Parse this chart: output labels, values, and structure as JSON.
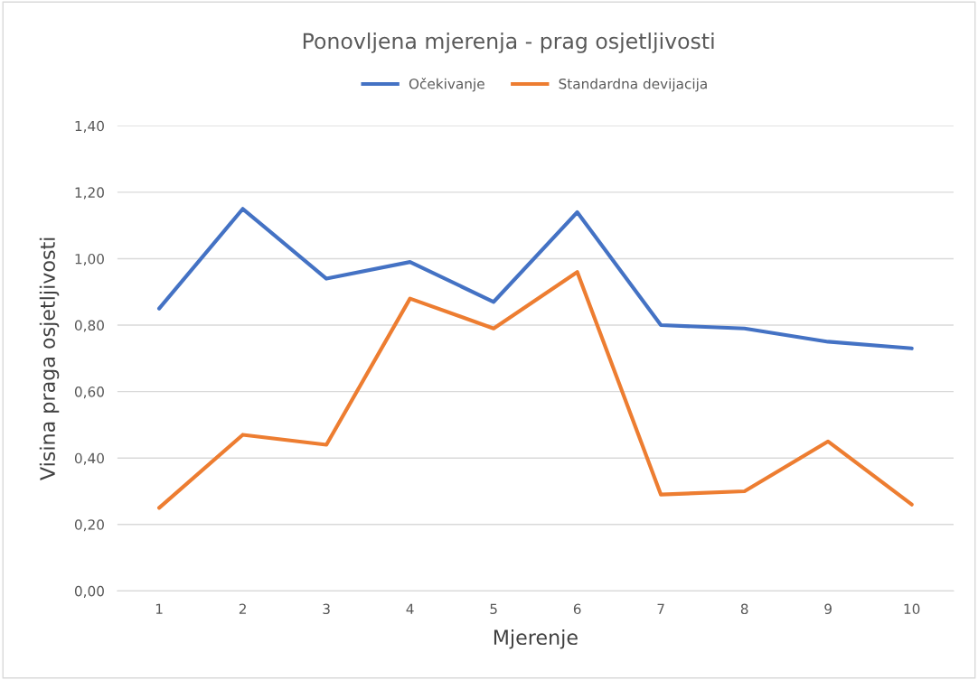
{
  "chart_data": {
    "type": "line",
    "title": "Ponovljena mjerenja - prag osjetljivosti",
    "xlabel": "Mjerenje",
    "ylabel": "Visina praga osjetljivosti",
    "categories": [
      "1",
      "2",
      "3",
      "4",
      "5",
      "6",
      "7",
      "8",
      "9",
      "10"
    ],
    "series": [
      {
        "name": "Očekivanje",
        "color": "#4472c4",
        "values": [
          0.85,
          1.15,
          0.94,
          0.99,
          0.87,
          1.14,
          0.8,
          0.79,
          0.75,
          0.73
        ]
      },
      {
        "name": "Standardna devijacija",
        "color": "#ed7d31",
        "values": [
          0.25,
          0.47,
          0.44,
          0.88,
          0.79,
          0.96,
          0.29,
          0.3,
          0.45,
          0.26
        ]
      }
    ],
    "ylim": [
      0,
      1.4
    ],
    "yticks": [
      {
        "value": 0,
        "label": "0,00"
      },
      {
        "value": 0.2,
        "label": "0,20"
      },
      {
        "value": 0.4,
        "label": "0,40"
      },
      {
        "value": 0.6,
        "label": "0,60"
      },
      {
        "value": 0.8,
        "label": "0,80"
      },
      {
        "value": 1.0,
        "label": "1,00"
      },
      {
        "value": 1.2,
        "label": "1,20"
      },
      {
        "value": 1.4,
        "label": "1,40"
      }
    ],
    "grid": "y",
    "legend": "top",
    "marker": "none",
    "line_style": "solid"
  }
}
